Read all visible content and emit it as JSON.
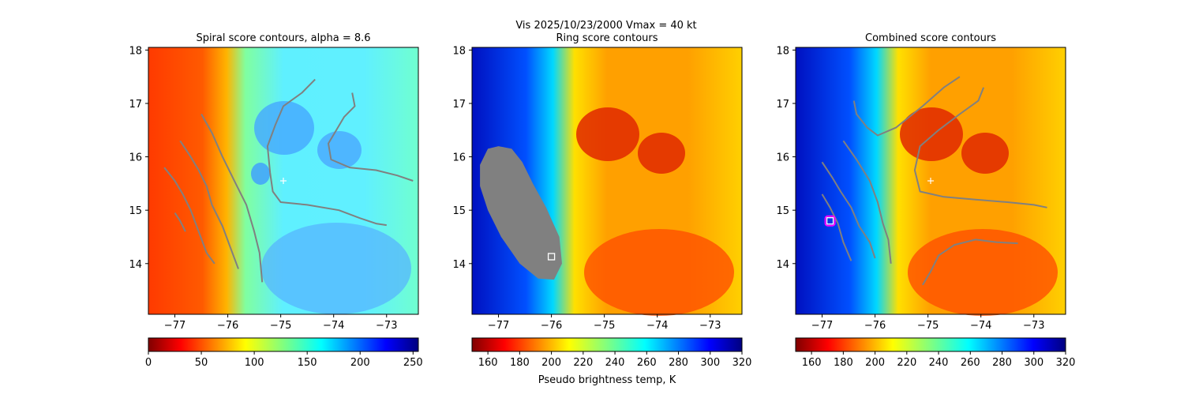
{
  "figure": {
    "suptitle_line1": "Vis  2025/10/23/2000    Vmax = 40 kt",
    "colorbar_label": "Pseudo brightness temp, K"
  },
  "colors": {
    "contour": "#808080",
    "ring_mask": "#808080",
    "center_marker": "#ffffff",
    "best_marker_outer": "#ff00ff",
    "best_marker_inner": "#ffffff",
    "cold_cloud": "#800000",
    "warm_surface": "#00007f"
  },
  "chart_data": [
    {
      "type": "heatmap",
      "title": "Spiral score contours, alpha =  8.6",
      "xlim": [
        -77.5,
        -72.4
      ],
      "ylim": [
        13.05,
        18.05
      ],
      "xticks": [
        -77,
        -76,
        -75,
        -74,
        -73
      ],
      "yticks": [
        14,
        15,
        16,
        17,
        18
      ],
      "colormap": "jet_r",
      "colorbar": {
        "min": 0,
        "max": 255,
        "ticks": [
          0,
          50,
          100,
          150,
          200,
          250
        ]
      },
      "center_marker": {
        "x": -74.95,
        "y": 15.55
      },
      "contours": [
        [
          [
            -77.0,
            14.95
          ],
          [
            -76.9,
            14.8
          ],
          [
            -76.8,
            14.6
          ]
        ],
        [
          [
            -77.2,
            15.8
          ],
          [
            -77.0,
            15.55
          ],
          [
            -76.85,
            15.3
          ],
          [
            -76.7,
            15.0
          ],
          [
            -76.55,
            14.6
          ],
          [
            -76.4,
            14.2
          ],
          [
            -76.25,
            14.0
          ]
        ],
        [
          [
            -76.9,
            16.3
          ],
          [
            -76.7,
            16.0
          ],
          [
            -76.55,
            15.75
          ],
          [
            -76.4,
            15.45
          ],
          [
            -76.3,
            15.1
          ],
          [
            -76.1,
            14.7
          ],
          [
            -75.95,
            14.3
          ],
          [
            -75.8,
            13.9
          ]
        ],
        [
          [
            -76.5,
            16.8
          ],
          [
            -76.3,
            16.45
          ],
          [
            -76.1,
            16.0
          ],
          [
            -75.85,
            15.5
          ],
          [
            -75.65,
            15.1
          ],
          [
            -75.5,
            14.6
          ],
          [
            -75.4,
            14.2
          ],
          [
            -75.35,
            13.65
          ]
        ],
        [
          [
            -74.35,
            17.45
          ],
          [
            -74.6,
            17.2
          ],
          [
            -74.95,
            16.95
          ],
          [
            -75.1,
            16.6
          ],
          [
            -75.25,
            16.2
          ],
          [
            -75.2,
            15.7
          ],
          [
            -75.15,
            15.35
          ],
          [
            -75.0,
            15.15
          ],
          [
            -74.5,
            15.1
          ],
          [
            -73.9,
            15.0
          ],
          [
            -73.5,
            14.85
          ],
          [
            -73.2,
            14.75
          ],
          [
            -73.0,
            14.72
          ]
        ],
        [
          [
            -73.65,
            17.2
          ],
          [
            -73.6,
            16.95
          ],
          [
            -73.8,
            16.75
          ],
          [
            -73.95,
            16.5
          ],
          [
            -74.1,
            16.25
          ],
          [
            -74.05,
            15.95
          ],
          [
            -73.7,
            15.8
          ],
          [
            -73.2,
            15.75
          ],
          [
            -72.8,
            15.65
          ],
          [
            -72.5,
            15.55
          ]
        ]
      ]
    },
    {
      "type": "heatmap",
      "title": "Ring score contours",
      "xlim": [
        -77.5,
        -72.4
      ],
      "ylim": [
        13.05,
        18.05
      ],
      "xticks": [
        -77,
        -76,
        -75,
        -74,
        -73
      ],
      "yticks": [
        14,
        15,
        16,
        17,
        18
      ],
      "colormap": "jet_r",
      "colorbar": {
        "min": 150,
        "max": 320,
        "ticks": [
          160,
          180,
          200,
          220,
          240,
          260,
          280,
          300,
          320
        ]
      },
      "ring_mask": [
        [
          -77.2,
          16.15
        ],
        [
          -77.0,
          16.2
        ],
        [
          -76.75,
          16.15
        ],
        [
          -76.55,
          15.9
        ],
        [
          -76.35,
          15.5
        ],
        [
          -76.1,
          15.05
        ],
        [
          -75.85,
          14.5
        ],
        [
          -75.8,
          14.0
        ],
        [
          -75.95,
          13.7
        ],
        [
          -76.25,
          13.72
        ],
        [
          -76.6,
          14.0
        ],
        [
          -76.95,
          14.5
        ],
        [
          -77.2,
          15.0
        ],
        [
          -77.35,
          15.45
        ],
        [
          -77.35,
          15.85
        ]
      ],
      "best_marker": {
        "x": -76.0,
        "y": 14.13
      }
    },
    {
      "type": "heatmap",
      "title": "Combined score contours",
      "xlim": [
        -77.5,
        -72.4
      ],
      "ylim": [
        13.05,
        18.05
      ],
      "xticks": [
        -77,
        -76,
        -75,
        -74,
        -73
      ],
      "yticks": [
        14,
        15,
        16,
        17,
        18
      ],
      "colormap": "jet_r",
      "colorbar": {
        "min": 150,
        "max": 320,
        "ticks": [
          160,
          180,
          200,
          220,
          240,
          260,
          280,
          300,
          320
        ]
      },
      "center_marker": {
        "x": -74.95,
        "y": 15.55
      },
      "best_marker": {
        "x": -76.85,
        "y": 14.8
      },
      "contours": [
        [
          [
            -76.4,
            17.05
          ],
          [
            -76.35,
            16.8
          ],
          [
            -76.15,
            16.55
          ],
          [
            -75.95,
            16.4
          ],
          [
            -75.6,
            16.55
          ],
          [
            -75.1,
            16.95
          ],
          [
            -74.7,
            17.3
          ],
          [
            -74.4,
            17.5
          ]
        ],
        [
          [
            -77.0,
            15.3
          ],
          [
            -76.85,
            15.05
          ],
          [
            -76.7,
            14.75
          ],
          [
            -76.6,
            14.4
          ],
          [
            -76.45,
            14.05
          ]
        ],
        [
          [
            -77.0,
            15.9
          ],
          [
            -76.8,
            15.6
          ],
          [
            -76.65,
            15.35
          ],
          [
            -76.45,
            15.05
          ],
          [
            -76.3,
            14.7
          ],
          [
            -76.1,
            14.4
          ],
          [
            -76.0,
            14.1
          ]
        ],
        [
          [
            -76.6,
            16.3
          ],
          [
            -76.35,
            15.95
          ],
          [
            -76.1,
            15.55
          ],
          [
            -75.95,
            15.15
          ],
          [
            -75.85,
            14.75
          ],
          [
            -75.75,
            14.45
          ],
          [
            -75.7,
            14.0
          ]
        ],
        [
          [
            -73.95,
            17.3
          ],
          [
            -74.05,
            17.05
          ],
          [
            -74.4,
            16.8
          ],
          [
            -74.8,
            16.5
          ],
          [
            -75.15,
            16.2
          ],
          [
            -75.25,
            15.75
          ],
          [
            -75.15,
            15.35
          ],
          [
            -74.7,
            15.25
          ],
          [
            -74.1,
            15.2
          ],
          [
            -73.5,
            15.15
          ],
          [
            -73.0,
            15.1
          ],
          [
            -72.75,
            15.05
          ]
        ],
        [
          [
            -75.1,
            13.6
          ],
          [
            -74.95,
            13.85
          ],
          [
            -74.8,
            14.15
          ],
          [
            -74.5,
            14.35
          ],
          [
            -74.1,
            14.45
          ],
          [
            -73.7,
            14.4
          ],
          [
            -73.3,
            14.38
          ]
        ]
      ]
    }
  ]
}
